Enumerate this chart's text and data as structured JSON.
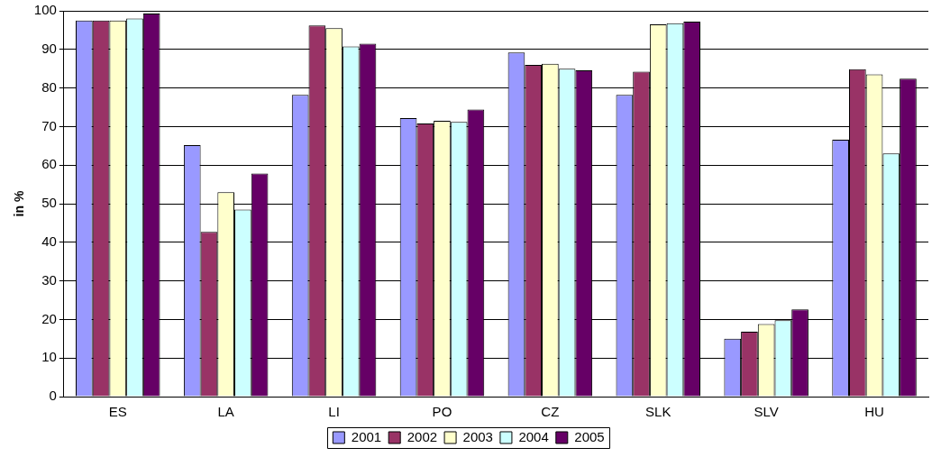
{
  "chart_data": {
    "type": "bar",
    "ylabel": "in %",
    "categories": [
      "ES",
      "LA",
      "LI",
      "PO",
      "CZ",
      "SLK",
      "SLV",
      "HU"
    ],
    "series": [
      {
        "name": "2001",
        "color": "#9999ff",
        "values": [
          97.5,
          65.2,
          78.2,
          72.2,
          89.2,
          78.2,
          15,
          66.6
        ]
      },
      {
        "name": "2002",
        "color": "#993366",
        "values": [
          97.5,
          42.7,
          96.2,
          70.8,
          86,
          84.2,
          16.8,
          84.9
        ]
      },
      {
        "name": "2003",
        "color": "#ffffcc",
        "values": [
          97.5,
          53,
          95.5,
          71.5,
          86.3,
          96.5,
          18.8,
          83.5
        ]
      },
      {
        "name": "2004",
        "color": "#ccffff",
        "values": [
          98,
          48.5,
          90.8,
          71.2,
          85,
          96.8,
          19.8,
          63
        ]
      },
      {
        "name": "2005",
        "color": "#660066",
        "values": [
          99.3,
          57.8,
          91.5,
          74.4,
          84.6,
          97.2,
          22.6,
          82.4
        ]
      }
    ],
    "ylim": [
      0,
      100
    ],
    "yticks": [
      0,
      10,
      20,
      30,
      40,
      50,
      60,
      70,
      80,
      90,
      100
    ],
    "grid": "y",
    "legend": "bottom"
  }
}
